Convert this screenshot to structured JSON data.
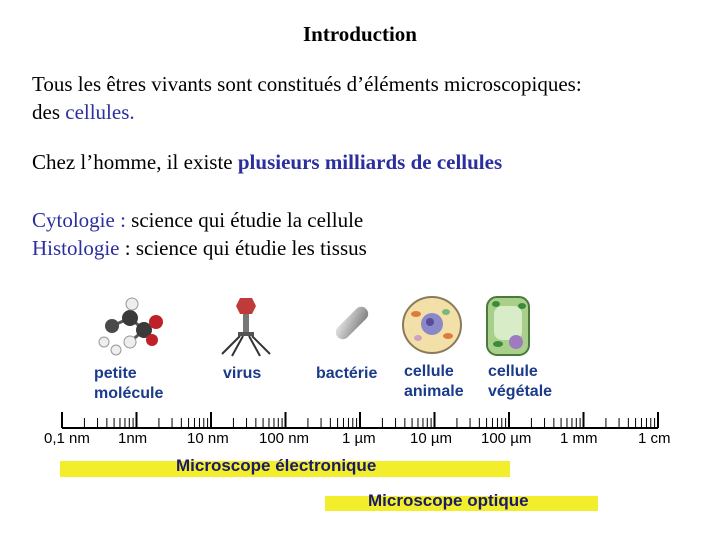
{
  "heading": "Introduction",
  "paragraph1": {
    "line1": "Tous les êtres vivants sont constitués d’éléments microscopiques:",
    "line2_prefix": "des ",
    "line2_highlight": "cellules."
  },
  "paragraph2": {
    "prefix": "Chez l’homme, il existe ",
    "highlight": "plusieurs milliards de cellules"
  },
  "definitions": [
    {
      "term": "Cytologie :",
      "text": " science qui étudie la cellule"
    },
    {
      "term": "Histologie",
      "text": " : science qui étudie les tissus"
    }
  ],
  "objects": [
    {
      "line1": "petite",
      "line2": "molécule"
    },
    {
      "line1": "virus",
      "line2": ""
    },
    {
      "line1": "bactérie",
      "line2": ""
    },
    {
      "line1": "cellule",
      "line2": "animale"
    },
    {
      "line1": "cellule",
      "line2": "végétale"
    }
  ],
  "scale": [
    "0,1 nm",
    "1nm",
    "10 nm",
    "100 nm",
    "1 µm",
    "10 µm",
    "100 µm",
    "1 mm",
    "1 cm"
  ],
  "ranges": {
    "electron": "Microscope électronique",
    "optical": "Microscope optique"
  },
  "colors": {
    "highlight_text": "#2b2f9e",
    "band": "#f2ee2c",
    "label": "#1a3a8a"
  }
}
